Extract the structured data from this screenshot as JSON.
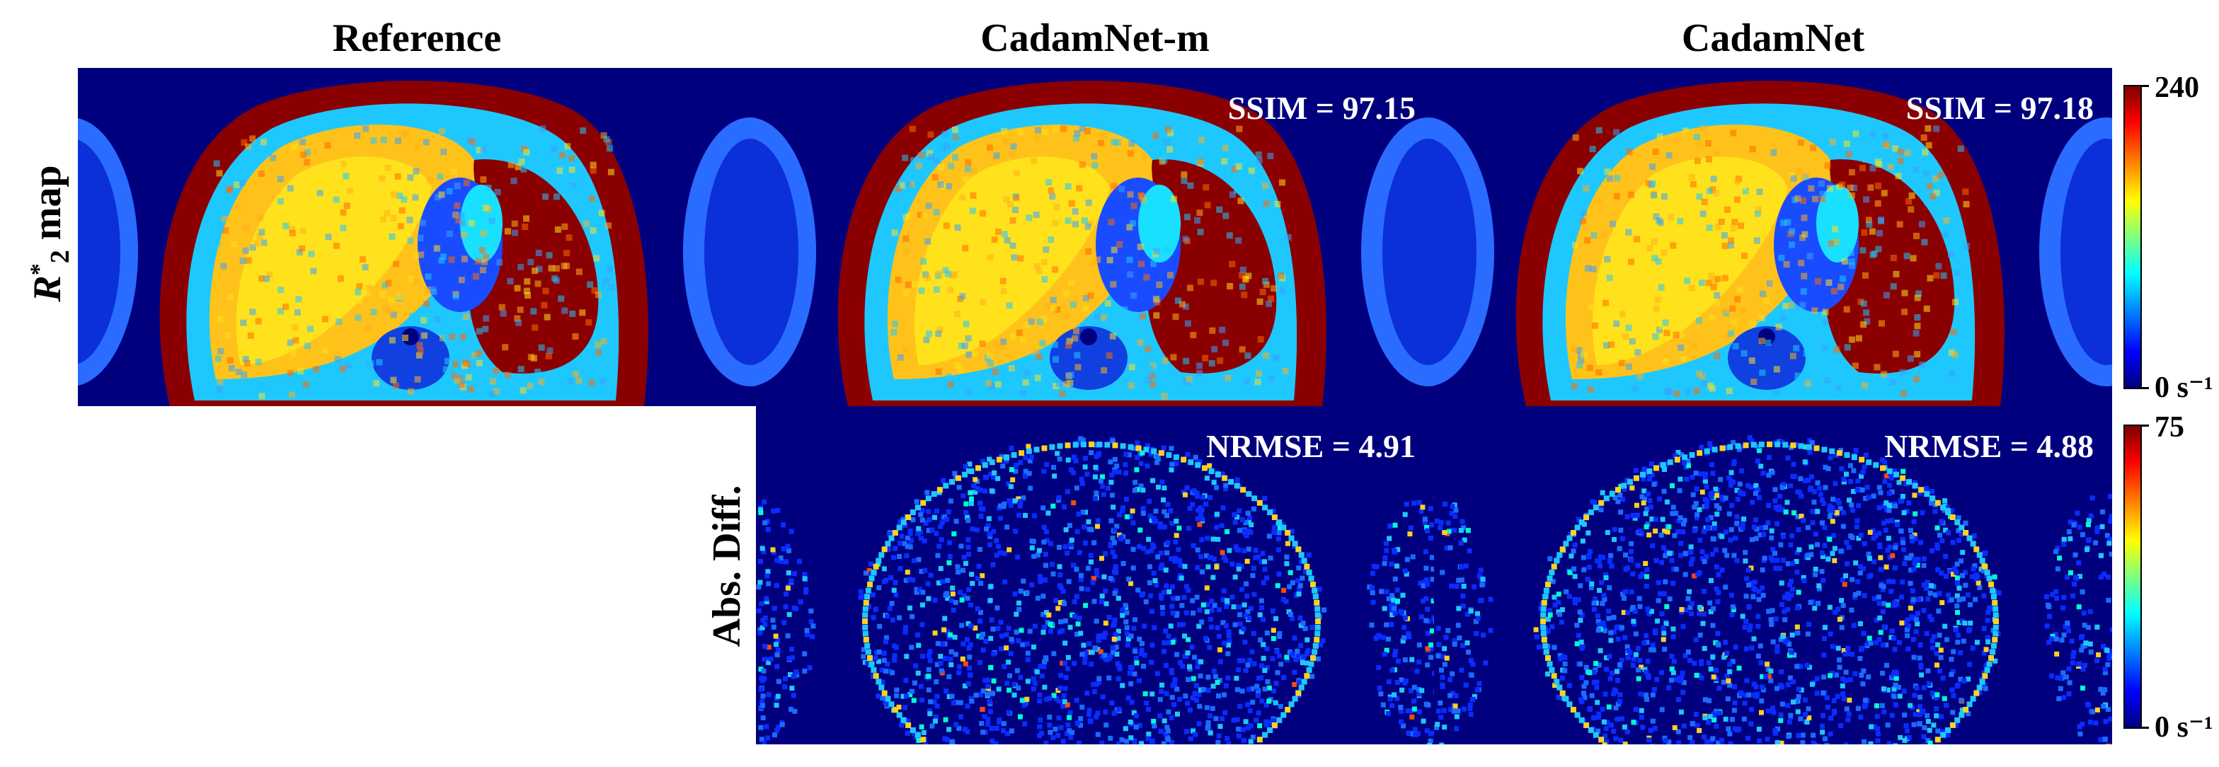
{
  "columns": [
    "Reference",
    "CadamNet-m",
    "CadamNet"
  ],
  "rows": {
    "r2_label_base": "R",
    "r2_label_sub": "2",
    "r2_label_sup": "*",
    "r2_label_rest": " map",
    "diff_label": "Abs. Diff."
  },
  "metrics": {
    "ssim_m": "SSIM = 97.15",
    "ssim": "SSIM = 97.18",
    "nrmse_m": "NRMSE = 4.91",
    "nrmse": "NRMSE = 4.88"
  },
  "colorbars": {
    "r2_max": "240",
    "r2_min": "0 s⁻¹",
    "diff_max": "75",
    "diff_min": "0 s⁻¹",
    "colormap": [
      "#00007f",
      "#0000ff",
      "#00ffff",
      "#ffff00",
      "#ff0000",
      "#7f0000"
    ]
  }
}
